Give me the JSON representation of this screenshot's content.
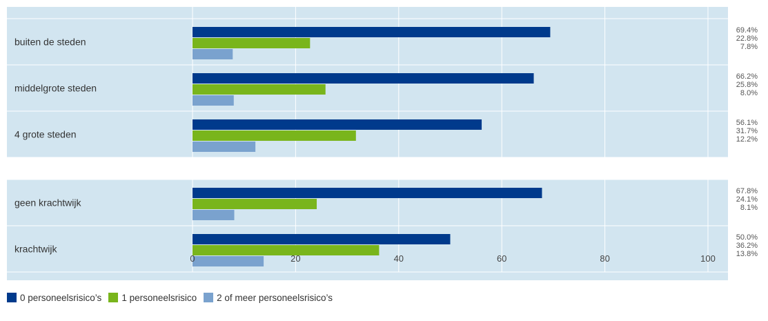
{
  "chart_data": {
    "type": "bar",
    "orientation": "horizontal",
    "groups": [
      [
        "buiten de steden",
        "middelgrote steden",
        "4 grote steden"
      ],
      [
        "geen krachtwijk",
        "krachtwijk"
      ]
    ],
    "categories": [
      "buiten de steden",
      "middelgrote steden",
      "4 grote steden",
      "geen krachtwijk",
      "krachtwijk"
    ],
    "series": [
      {
        "name": "0 personeelsrisico’s",
        "color": "#003a8c",
        "values": [
          69.4,
          66.2,
          56.1,
          67.8,
          50.0
        ]
      },
      {
        "name": "1 personeelsrisico",
        "color": "#79b51c",
        "values": [
          22.8,
          25.8,
          31.7,
          24.1,
          36.2
        ]
      },
      {
        "name": "2 of meer personeelsrisico’s",
        "color": "#7aa2ce",
        "values": [
          7.8,
          8.0,
          12.2,
          8.1,
          13.8
        ]
      }
    ],
    "value_labels": [
      [
        "69.4%",
        "22.8%",
        "7.8%"
      ],
      [
        "66.2%",
        "25.8%",
        "8.0%"
      ],
      [
        "56.1%",
        "31.7%",
        "12.2%"
      ],
      [
        "67.8%",
        "24.1%",
        "8.1%"
      ],
      [
        "50.0%",
        "36.2%",
        "13.8%"
      ]
    ],
    "xlim": [
      0,
      100
    ],
    "xticks": [
      0,
      20,
      40,
      60,
      80,
      100
    ],
    "grid": true,
    "legend_position": "bottom-left",
    "background_color": "#d2e5f0",
    "grid_color": "#ffffff"
  }
}
